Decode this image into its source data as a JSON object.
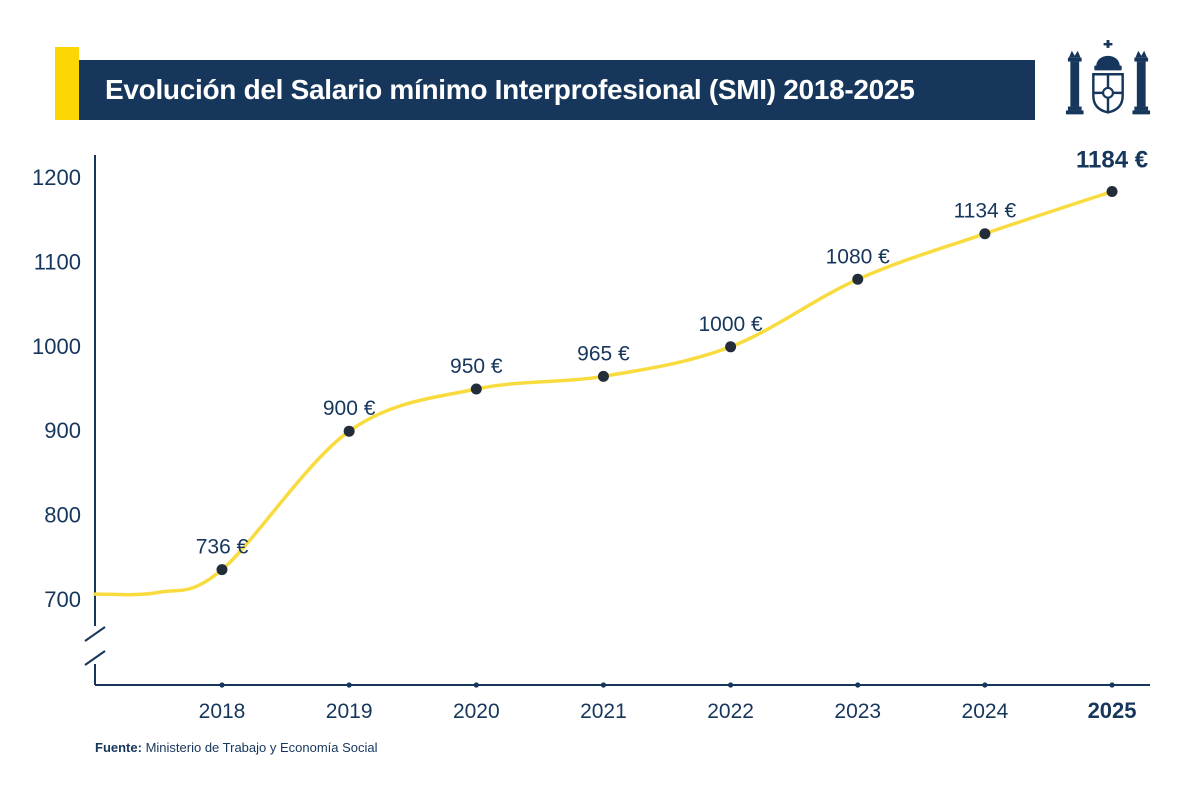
{
  "header": {
    "title": "Evolución del Salario mínimo Interprofesional (SMI) 2018-2025",
    "accent_color": "#fcd703",
    "banner_color": "#16365c",
    "title_color": "#ffffff"
  },
  "logo": {
    "icon": "spain-coat-of-arms"
  },
  "source": {
    "label": "Fuente:",
    "text": "Ministerio de Trabajo y Economía Social"
  },
  "chart_data": {
    "type": "line",
    "title": "Evolución del Salario mínimo Interprofesional (SMI) 2018-2025",
    "categories": [
      "2018",
      "2019",
      "2020",
      "2021",
      "2022",
      "2023",
      "2024",
      "2025"
    ],
    "values": [
      736,
      900,
      950,
      965,
      1000,
      1080,
      1134,
      1184
    ],
    "point_labels": [
      "736 €",
      "900 €",
      "950 €",
      "965 €",
      "1000 €",
      "1080 €",
      "1134 €",
      "1184 €"
    ],
    "start_value": 707,
    "yticks": [
      700,
      800,
      900,
      1000,
      1100,
      1200
    ],
    "ylim": [
      700,
      1200
    ],
    "axis_break": true,
    "grid": false,
    "legend": "none",
    "line_color": "#f8dc3f",
    "point_color": "#232d3a",
    "label_color": "#16365c",
    "axis_color": "#16365c"
  }
}
